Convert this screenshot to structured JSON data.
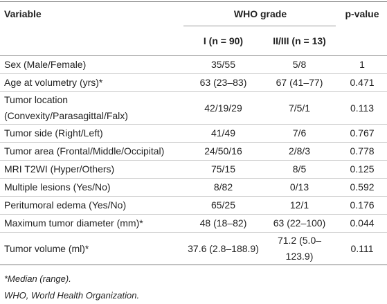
{
  "header": {
    "variable": "Variable",
    "group": "WHO grade",
    "pvalue": "p-value",
    "grades": [
      "I (n = 90)",
      "II/III (n = 13)"
    ]
  },
  "table": {
    "rows": [
      [
        "Sex (Male/Female)",
        "35/55",
        "5/8",
        "1"
      ],
      [
        "Age at volumetry (yrs)*",
        "63 (23–83)",
        "67 (41–77)",
        "0.471"
      ],
      [
        "Tumor location (Convexity/Parasagittal/Falx)",
        "42/19/29",
        "7/5/1",
        "0.113"
      ],
      [
        "Tumor side (Right/Left)",
        "41/49",
        "7/6",
        "0.767"
      ],
      [
        "Tumor area (Frontal/Middle/Occipital)",
        "24/50/16",
        "2/8/3",
        "0.778"
      ],
      [
        "MRI T2WI (Hyper/Others)",
        "75/15",
        "8/5",
        "0.125"
      ],
      [
        "Multiple lesions (Yes/No)",
        "8/82",
        "0/13",
        "0.592"
      ],
      [
        "Peritumoral edema (Yes/No)",
        "65/25",
        "12/1",
        "0.176"
      ],
      [
        "Maximum tumor diameter (mm)*",
        "48 (18–82)",
        "63 (22–100)",
        "0.044"
      ],
      [
        "Tumor volume (ml)*",
        "37.6 (2.8–188.9)",
        "71.2 (5.0–123.9)",
        "0.111"
      ]
    ]
  },
  "footnotes": [
    "*Median (range).",
    "WHO, World Health Organization."
  ]
}
